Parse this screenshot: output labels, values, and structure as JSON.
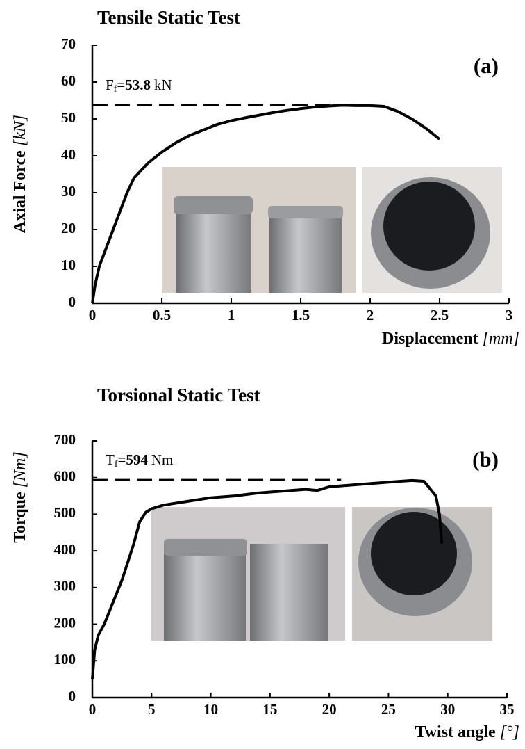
{
  "chart_data": [
    {
      "type": "line",
      "title": "Tensile Static Test",
      "panel_label": "(a)",
      "ylabel": {
        "text": "Axial Force",
        "unit": "[kN]"
      },
      "xlabel": {
        "text": "Displacement",
        "unit": "[mm]"
      },
      "annotation": {
        "symbol": "F",
        "subscript": "f",
        "sign": "=",
        "value": 53.8,
        "unit": "kN"
      },
      "xlim": [
        0,
        3
      ],
      "xticks": [
        0,
        0.5,
        1,
        1.5,
        2,
        2.5,
        3
      ],
      "ylim": [
        0,
        70
      ],
      "yticks": [
        0,
        10,
        20,
        30,
        40,
        50,
        60,
        70
      ],
      "x": [
        0,
        0.02,
        0.05,
        0.1,
        0.15,
        0.2,
        0.25,
        0.3,
        0.4,
        0.5,
        0.6,
        0.7,
        0.8,
        0.9,
        1.0,
        1.1,
        1.2,
        1.3,
        1.4,
        1.5,
        1.6,
        1.7,
        1.8,
        1.9,
        2.0,
        2.1,
        2.2,
        2.3,
        2.4,
        2.5
      ],
      "series": [
        {
          "color": "#000000",
          "values": [
            0,
            5,
            10,
            15,
            20,
            25,
            30,
            34,
            38,
            41,
            43.5,
            45.5,
            47,
            48.5,
            49.5,
            50.3,
            51,
            51.7,
            52.3,
            52.8,
            53.2,
            53.5,
            53.7,
            53.6,
            53.6,
            53.4,
            52,
            50,
            47.5,
            44.5
          ]
        }
      ]
    },
    {
      "type": "line",
      "title": "Torsional Static Test",
      "panel_label": "(b)",
      "ylabel": {
        "text": "Torque",
        "unit": "[Nm]"
      },
      "xlabel": {
        "text": "Twist angle",
        "unit": "[°]"
      },
      "annotation": {
        "symbol": "T",
        "subscript": "f",
        "sign": "=",
        "value": 594,
        "unit": "Nm"
      },
      "xlim": [
        0,
        35
      ],
      "xticks": [
        0,
        5,
        10,
        15,
        20,
        25,
        30,
        35
      ],
      "ylim": [
        0,
        700
      ],
      "yticks": [
        0,
        100,
        200,
        300,
        400,
        500,
        600,
        700
      ],
      "x": [
        0,
        0.2,
        0.5,
        1,
        1.5,
        2,
        2.5,
        3,
        3.5,
        4,
        4.5,
        5,
        6,
        8,
        10,
        12,
        14,
        16,
        18,
        19,
        20,
        22,
        24,
        26,
        27,
        28,
        28.5,
        29,
        29.3,
        29.5
      ],
      "series": [
        {
          "color": "#000000",
          "values": [
            50,
            130,
            170,
            200,
            240,
            280,
            320,
            370,
            420,
            480,
            505,
            515,
            525,
            535,
            545,
            550,
            558,
            563,
            568,
            565,
            575,
            580,
            585,
            590,
            592,
            590,
            570,
            550,
            500,
            420
          ]
        }
      ]
    }
  ]
}
